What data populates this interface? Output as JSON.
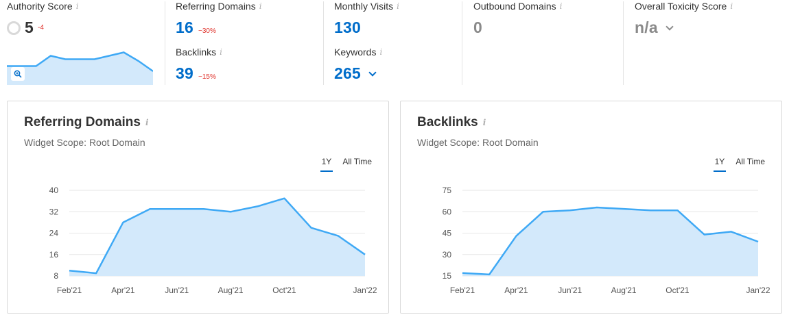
{
  "metrics": {
    "authority": {
      "label": "Authority Score",
      "value": "5",
      "delta": "-4",
      "zoom_icon": "zoom-in-icon",
      "spark": [
        0.55,
        0.55,
        0.55,
        0.85,
        0.75,
        0.75,
        0.75,
        0.85,
        0.95,
        0.7,
        0.4
      ]
    },
    "referring_domains": {
      "label": "Referring Domains",
      "value": "16",
      "delta": "−30%"
    },
    "backlinks": {
      "label": "Backlinks",
      "value": "39",
      "delta": "−15%"
    },
    "monthly_visits": {
      "label": "Monthly Visits",
      "value": "130"
    },
    "keywords": {
      "label": "Keywords",
      "value": "265"
    },
    "outbound": {
      "label": "Outbound Domains",
      "value": "0"
    },
    "toxicity": {
      "label": "Overall Toxicity Score",
      "value": "n/a"
    },
    "info_glyph": "i"
  },
  "colors": {
    "accent": "#006dca",
    "line": "#3fa9f5",
    "fill": "#d3e9fb",
    "negative": "#e0332c"
  },
  "range_options": {
    "one_year": "1Y",
    "all_time": "All Time"
  },
  "cards": [
    {
      "title": "Referring Domains",
      "scope": "Widget Scope: Root Domain"
    },
    {
      "title": "Backlinks",
      "scope": "Widget Scope: Root Domain"
    }
  ],
  "chart_data": [
    {
      "type": "area",
      "title": "Referring Domains",
      "x": [
        "Feb'21",
        "Mar'21",
        "Apr'21",
        "May'21",
        "Jun'21",
        "Jul'21",
        "Aug'21",
        "Sep'21",
        "Oct'21",
        "Nov'21",
        "Dec'21",
        "Jan'22"
      ],
      "x_tick_labels": [
        "Feb'21",
        "Apr'21",
        "Jun'21",
        "Aug'21",
        "Oct'21",
        "Jan'22"
      ],
      "series": [
        {
          "values": [
            10,
            9,
            28,
            33,
            33,
            33,
            32,
            34,
            37,
            26,
            23,
            16
          ]
        }
      ],
      "y_ticks": [
        8,
        16,
        24,
        32,
        40
      ],
      "ylim": [
        8,
        40
      ],
      "grid": true
    },
    {
      "type": "area",
      "title": "Backlinks",
      "x": [
        "Feb'21",
        "Mar'21",
        "Apr'21",
        "May'21",
        "Jun'21",
        "Jul'21",
        "Aug'21",
        "Sep'21",
        "Oct'21",
        "Nov'21",
        "Dec'21",
        "Jan'22"
      ],
      "x_tick_labels": [
        "Feb'21",
        "Apr'21",
        "Jun'21",
        "Aug'21",
        "Oct'21",
        "Jan'22"
      ],
      "series": [
        {
          "values": [
            17,
            16,
            43,
            60,
            61,
            63,
            62,
            61,
            61,
            44,
            46,
            39
          ]
        }
      ],
      "y_ticks": [
        15,
        30,
        45,
        60,
        75
      ],
      "ylim": [
        15,
        75
      ],
      "grid": true
    }
  ]
}
